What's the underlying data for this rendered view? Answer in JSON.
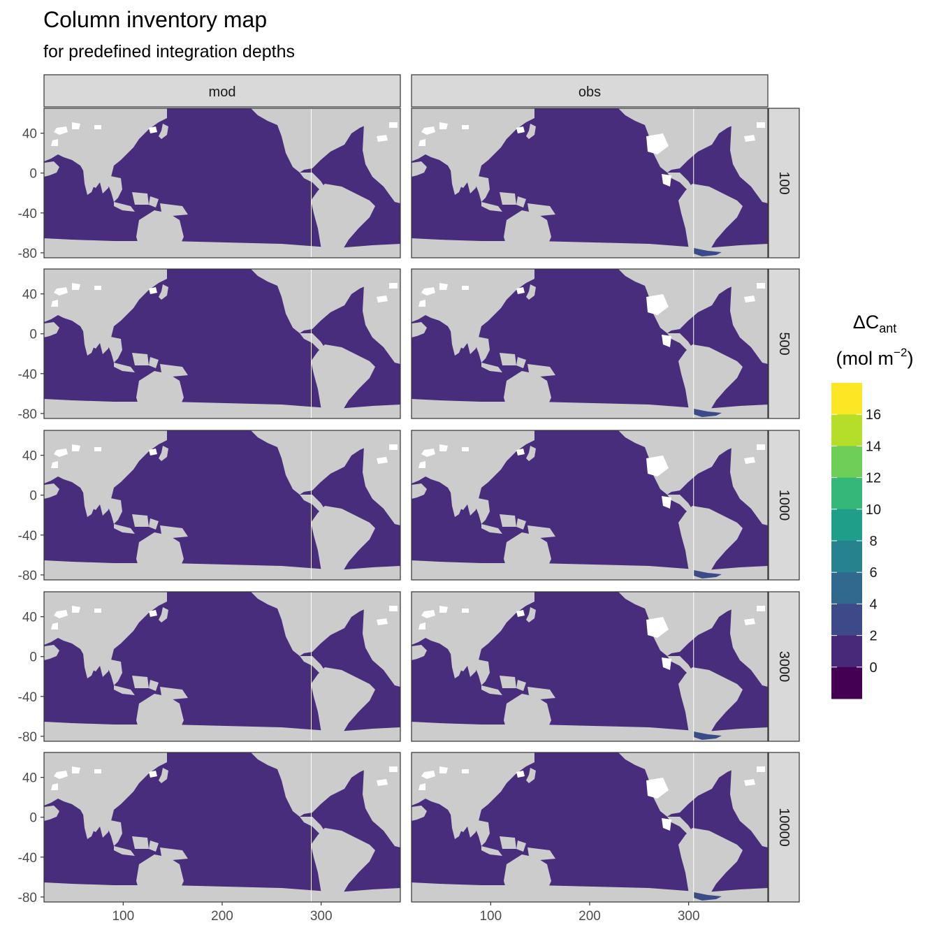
{
  "title": "Column inventory map",
  "subtitle": "for predefined integration depths",
  "facets": {
    "columns": [
      "mod",
      "obs"
    ],
    "rows": [
      "100",
      "500",
      "1000",
      "3000",
      "10000"
    ]
  },
  "axes": {
    "x_ticks": [
      "100",
      "200",
      "300"
    ],
    "y_ticks": [
      "40",
      "0",
      "-40",
      "-80"
    ]
  },
  "legend": {
    "title_main": "ΔC",
    "title_sub": "ant",
    "unit_open": "(mol m",
    "unit_sup": "−2",
    "unit_close": ")",
    "labels": [
      "16",
      "14",
      "12",
      "10",
      "8",
      "6",
      "4",
      "2",
      "0"
    ],
    "colors": [
      "#fde725",
      "#b5de2b",
      "#6ece58",
      "#35b779",
      "#1f9e89",
      "#26828e",
      "#31688e",
      "#3e4989",
      "#482878",
      "#440154"
    ]
  },
  "colors": {
    "ocean": "#472d7b",
    "land": "#cccccc",
    "ice": "#ffffff",
    "obs_south_atlantic": "#3b4a88",
    "strip": "#d9d9d9",
    "border": "#333333"
  },
  "chart_data": {
    "type": "heatmap",
    "title": "Column inventory map",
    "subtitle": "for predefined integration depths",
    "xlabel": "",
    "ylabel": "",
    "xlim": [
      20,
      380
    ],
    "ylim": [
      -85,
      65
    ],
    "x_ticks": [
      100,
      200,
      300
    ],
    "y_ticks": [
      40,
      0,
      -40,
      -80
    ],
    "facet_cols": [
      "mod",
      "obs"
    ],
    "facet_rows": [
      100,
      500,
      1000,
      3000,
      10000
    ],
    "color_scale": {
      "name": "ΔCant (mol m−2)",
      "breaks": [
        0,
        2,
        4,
        6,
        8,
        10,
        12,
        14,
        16
      ],
      "palette": "viridis"
    },
    "panels": [
      {
        "source": "mod",
        "depth": 100,
        "typical_value": 1
      },
      {
        "source": "obs",
        "depth": 100,
        "typical_value": 1,
        "south_atlantic_value": 3
      },
      {
        "source": "mod",
        "depth": 500,
        "typical_value": 1
      },
      {
        "source": "obs",
        "depth": 500,
        "typical_value": 1,
        "south_atlantic_value": 3
      },
      {
        "source": "mod",
        "depth": 1000,
        "typical_value": 1
      },
      {
        "source": "obs",
        "depth": 1000,
        "typical_value": 1,
        "south_atlantic_value": 3
      },
      {
        "source": "mod",
        "depth": 3000,
        "typical_value": 1
      },
      {
        "source": "obs",
        "depth": 3000,
        "typical_value": 1,
        "south_atlantic_value": 3
      },
      {
        "source": "mod",
        "depth": 10000,
        "typical_value": 1
      },
      {
        "source": "obs",
        "depth": 10000,
        "typical_value": 1,
        "south_atlantic_value": 3
      }
    ]
  }
}
